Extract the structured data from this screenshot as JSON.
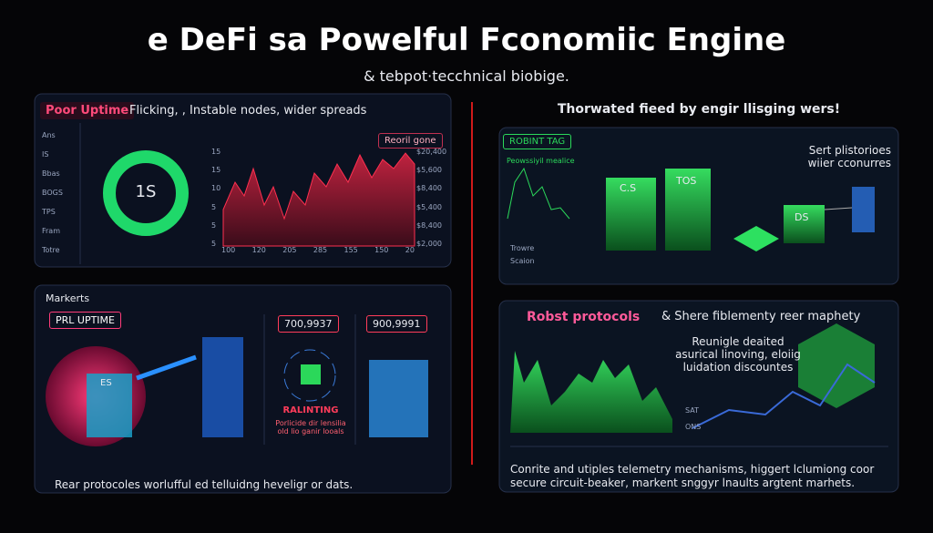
{
  "header": {
    "title": "e DeFi sa Powelful Fconomiic Engine",
    "subtitle": "& tebpot·tecchnical biobige."
  },
  "panel_uptime": {
    "tag": "Poor Uptime",
    "text": "Flicking, , Instable nodes, wider spreads",
    "sidebar": [
      "Ans",
      "IS",
      "Bbas",
      "BOGS",
      "TPS",
      "Fram",
      "Totre"
    ],
    "donut_label": "1S",
    "chart_tag": "Reoril gone",
    "left_axis": [
      "15",
      "15",
      "10",
      "5",
      "5",
      "5"
    ],
    "right_axis": [
      "$20,400",
      "$5,600",
      "$8,400",
      "$5,400",
      "$8,400",
      "$2,000"
    ],
    "x_axis": [
      "100",
      "120",
      "205",
      "285",
      "155",
      "150",
      "20"
    ]
  },
  "panel_tiered": {
    "header": "Thorwated fieed by engir llisging wers!",
    "tag": "ROBINT TAG",
    "mini_title": "Peowssiyil mealice",
    "legend": [
      "Trowre",
      "Scaion"
    ],
    "blocks": [
      "C.S",
      "TOS",
      "DS"
    ],
    "note": "Sert plistorioes wiier cconurres"
  },
  "panel_markets": {
    "title": "Markerts",
    "tag": "PRL UPTIME",
    "box1": "700,9937",
    "box2": "900,9991",
    "rebalance": "RALINTING",
    "rebalance_note": "Porlicide dir lensilia old lio ganir looals",
    "cube_label": "ES",
    "footer": "Rear protocoles worlufful ed telluidng heveligr or dats."
  },
  "panel_protocols": {
    "tag": "Robst protocols",
    "heading": "& Shere fiblementy reer maphety",
    "note": "Reunigle deaited asurical linoving, eloiig luidation discountes",
    "legend": [
      "SAT",
      "ONS"
    ],
    "footer": "Conrite and utiples telemetry mechanisms, higgert lclumiong coor secure circuit-beaker, markent snggyr lnaults argtent marhets."
  }
}
